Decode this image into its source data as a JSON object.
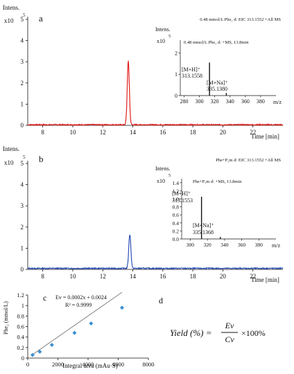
{
  "figure": {
    "panel_a": {
      "letter": "a",
      "y_axis_title": "Intens.",
      "y_exponent_base": "x10",
      "y_exponent": "5",
      "trace_label": "0.48 mmol/L Phe₂ d: EIC 313.1552 +All MS",
      "x_axis_label": "Time [min]",
      "inset": {
        "y_axis_title": "Intens.",
        "y_exponent_base": "x10",
        "y_exponent": "5",
        "title": "0.48 mmol/L Phe₂ d: +MS, 13.8min",
        "peak1_label": "[M+H]⁺",
        "peak1_value": "313.1558",
        "peak2_label": "[M+Na]⁺",
        "peak2_value": "335.1380",
        "x_axis_label": "m/z"
      }
    },
    "panel_b": {
      "letter": "b",
      "y_axis_title": "Intens.",
      "y_exponent_base": "x10",
      "y_exponent": "5",
      "trace_label": "Phe+P₁m d: EIC 313.1552 +All MS",
      "x_axis_label": "Time [min]",
      "inset": {
        "y_axis_title": "Intens.",
        "y_exponent_base": "x10",
        "y_exponent": "5",
        "title": "Phe+P₁m d: +MS, 13.8min",
        "peak1_label": "[M+H]⁺",
        "peak1_value": "313.1553",
        "peak2_label": "[M+Na]⁺",
        "peak2_value": "335.1368",
        "x_axis_label": "m/z"
      }
    },
    "panel_c": {
      "letter": "c",
      "ylabel": "Phe₂ (mmol/L)",
      "xlabel": "Integral area (mAu·S)",
      "equation": "Ev = 0.0002x + 0.0024",
      "r_squared": "R² = 0.9999"
    },
    "panel_d": {
      "letter": "d",
      "formula_lhs": "Yield (%) =",
      "numerator": "Ev",
      "denominator": "Cv",
      "multiplier": "×100%"
    }
  },
  "chart_data": [
    {
      "type": "line",
      "panel": "a",
      "series": [
        {
          "name": "0.48 mmol/L Phe₂ d: EIC 313.1552 +All MS",
          "color": "#e02020",
          "peak_time": 13.7,
          "peak_intensity": 3.0,
          "baseline": 0.03
        }
      ],
      "xlim": [
        7,
        24
      ],
      "ylim": [
        0,
        5
      ],
      "xticks": [
        8,
        10,
        12,
        14,
        16,
        18,
        20,
        22
      ],
      "yticks": [
        0,
        1,
        2,
        3,
        4,
        5
      ],
      "xlabel": "Time [min]",
      "ylabel": "Intens."
    },
    {
      "type": "bar",
      "panel": "a-inset",
      "peaks": [
        {
          "mz": 313.1558,
          "intensity": 1.55
        },
        {
          "mz": 335.138,
          "intensity": 0.12
        }
      ],
      "color": "#111111",
      "xlim": [
        275,
        400
      ],
      "ylim": [
        0,
        2.6
      ],
      "xticks": [
        280,
        300,
        320,
        340,
        360,
        380
      ],
      "yticks": [
        0,
        1,
        2
      ],
      "xlabel": "m/z",
      "ylabel": "Intens."
    },
    {
      "type": "line",
      "panel": "b",
      "series": [
        {
          "name": "Phe+P₁m d: EIC 313.1552 +All MS",
          "color": "#2d4fb5",
          "peak_time": 13.8,
          "peak_intensity": 1.6,
          "baseline": 0.05
        }
      ],
      "xlim": [
        7,
        24
      ],
      "ylim": [
        0,
        5
      ],
      "xticks": [
        8,
        10,
        12,
        14,
        16,
        18,
        20,
        22
      ],
      "yticks": [
        0,
        1,
        2,
        3,
        4,
        5
      ],
      "xlabel": "Time [min]",
      "ylabel": "Intens."
    },
    {
      "type": "bar",
      "panel": "b-inset",
      "peaks": [
        {
          "mz": 313.1553,
          "intensity": 1.05
        },
        {
          "mz": 335.1368,
          "intensity": 0.05
        }
      ],
      "color": "#111111",
      "xlim": [
        290,
        400
      ],
      "ylim": [
        0,
        1.5
      ],
      "xticks": [
        300,
        320,
        340,
        360,
        380
      ],
      "yticks": [
        0.0,
        0.2,
        0.4,
        0.6,
        0.8,
        1.0,
        1.2,
        1.4
      ],
      "xlabel": "m/z",
      "ylabel": "Intens."
    },
    {
      "type": "scatter",
      "panel": "c",
      "x": [
        320,
        800,
        1600,
        3100,
        4200,
        6250
      ],
      "y": [
        0.06,
        0.12,
        0.25,
        0.48,
        0.66,
        0.96
      ],
      "fit": {
        "slope": 0.0002,
        "intercept": 0.0024
      },
      "point_color": "#3d8fd1",
      "xlim": [
        0,
        8000
      ],
      "ylim": [
        0,
        1.2
      ],
      "xticks": [
        0,
        2000,
        4000,
        6000,
        8000
      ],
      "yticks": [
        0,
        0.2,
        0.4,
        0.6,
        0.8,
        1.0,
        1.2
      ],
      "xlabel": "Integral area (mAu·S)",
      "ylabel": "Phe₂ (mmol/L)"
    }
  ]
}
